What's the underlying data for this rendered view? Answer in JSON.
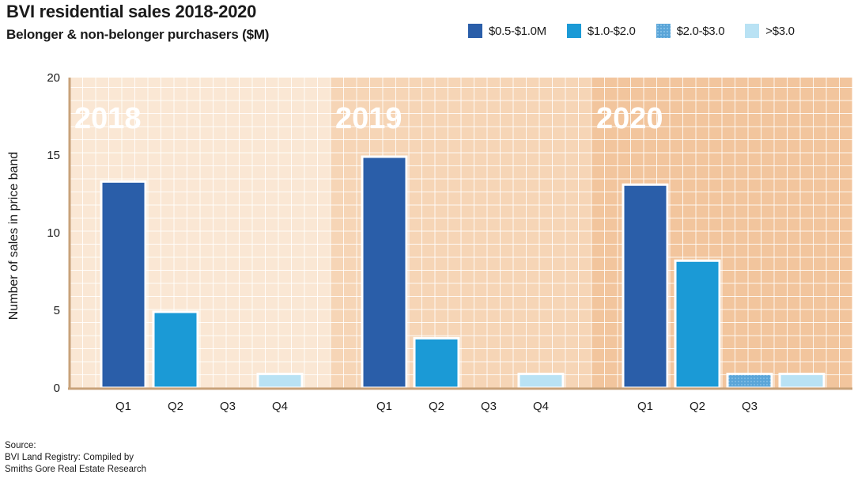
{
  "title": "BVI residential sales 2018-2020",
  "subtitle": "Belonger & non-belonger purchasers ($M)",
  "legend": [
    {
      "label": "$0.5-$1.0M",
      "color": "#2a5ea9"
    },
    {
      "label": "$1.0-$2.0",
      "color": "#1b9ad6"
    },
    {
      "label": "$2.0-$3.0",
      "color": "#5aa5d8"
    },
    {
      "label": ">$3.0",
      "color": "#b9e2f4"
    }
  ],
  "source": {
    "line1": "Source:",
    "line2": "BVI Land Registry: Compiled by",
    "line3": "Smiths Gore Real Estate Research"
  },
  "chart_data": {
    "type": "bar",
    "ylabel": "Number of sales in price band",
    "ylim": [
      0,
      20
    ],
    "yticks": [
      0,
      5,
      10,
      15,
      20
    ],
    "grid": true,
    "legend_position": "top-right",
    "panels": [
      {
        "year": "2018",
        "background": "#fae7d4",
        "bars": [
          {
            "quarter": "Q1",
            "band": "$0.5-$1.0M",
            "value": 13.3
          },
          {
            "quarter": "Q2",
            "band": "$1.0-$2.0",
            "value": 4.9
          },
          {
            "quarter": "Q3",
            "band": "",
            "value": 0
          },
          {
            "quarter": "Q4",
            "band": ">$3.0",
            "value": 0.9
          }
        ]
      },
      {
        "year": "2019",
        "background": "#f6d5b6",
        "bars": [
          {
            "quarter": "Q1",
            "band": "$0.5-$1.0M",
            "value": 14.9
          },
          {
            "quarter": "Q2",
            "band": "$1.0-$2.0",
            "value": 3.2
          },
          {
            "quarter": "Q3",
            "band": "",
            "value": 0
          },
          {
            "quarter": "Q4",
            "band": ">$3.0",
            "value": 0.9
          }
        ]
      },
      {
        "year": "2020",
        "background": "#f2c59d",
        "bars": [
          {
            "quarter": "Q1",
            "band": "$0.5-$1.0M",
            "value": 13.1
          },
          {
            "quarter": "Q2",
            "band": "$1.0-$2.0",
            "value": 8.2
          },
          {
            "quarter": "Q3",
            "band": "$2.0-$3.0",
            "value": 0.9
          },
          {
            "quarter": "",
            "band": ">$3.0",
            "value": 0.9
          }
        ]
      }
    ]
  }
}
